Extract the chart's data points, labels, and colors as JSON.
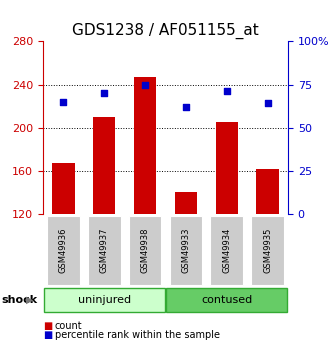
{
  "title": "GDS1238 / AF051155_at",
  "categories": [
    "GSM49936",
    "GSM49937",
    "GSM49938",
    "GSM49933",
    "GSM49934",
    "GSM49935"
  ],
  "bar_values": [
    167,
    210,
    247,
    140,
    205,
    162
  ],
  "dot_values": [
    65,
    70,
    75,
    62,
    71,
    64
  ],
  "ylim_left": [
    120,
    280
  ],
  "ylim_right": [
    0,
    100
  ],
  "yticks_left": [
    120,
    160,
    200,
    240,
    280
  ],
  "yticks_right": [
    0,
    25,
    50,
    75,
    100
  ],
  "yticklabels_right": [
    "0",
    "25",
    "50",
    "75",
    "100%"
  ],
  "bar_color": "#cc0000",
  "dot_color": "#0000cc",
  "group1_label": "uninjured",
  "group2_label": "contused",
  "group1_color": "#ccffcc",
  "group2_color": "#66cc66",
  "group_border_color": "#33aa33",
  "group_label": "shock",
  "title_fontsize": 11,
  "axis_color_left": "#cc0000",
  "axis_color_right": "#0000cc",
  "legend_count_label": "count",
  "legend_pct_label": "percentile rank within the sample",
  "bar_width": 0.55,
  "tick_label_bg": "#cccccc",
  "arrow_color": "#777777"
}
